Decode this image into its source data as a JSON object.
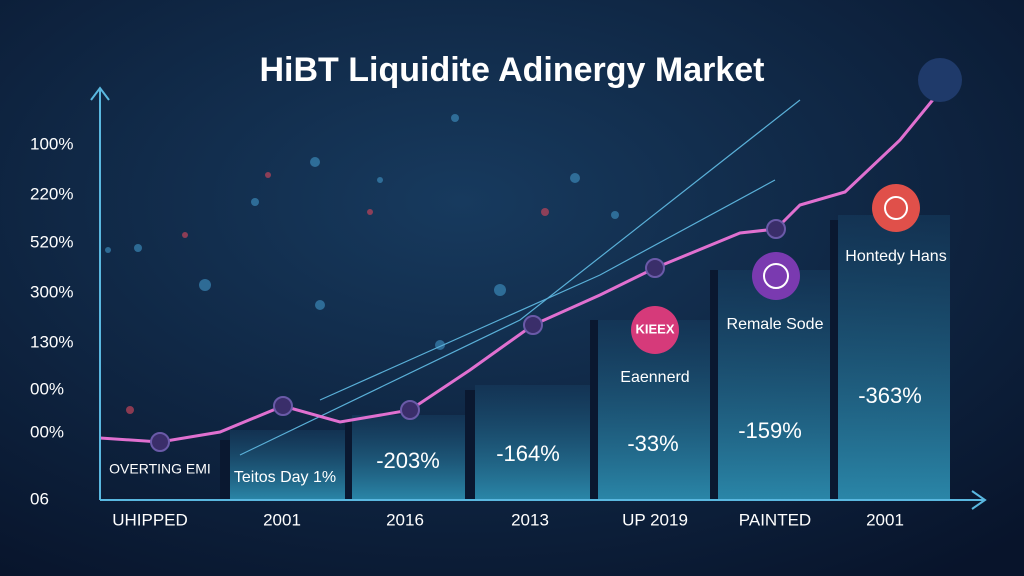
{
  "title": "HiBT Liquidite Adinergy Market",
  "y_labels": [
    "100%",
    "220%",
    "520%",
    "300%",
    "130%",
    "00%",
    "00%",
    "06"
  ],
  "x_labels": [
    "UHIPPED",
    "2001",
    "2016",
    "2013",
    "UP 2019",
    "PAINTED",
    "2001"
  ],
  "bar_labels": [
    "OVERTING EMI",
    "Teitos Day 1%",
    "-203%",
    "-164%",
    "-33%",
    "-159%",
    "-363%"
  ],
  "callouts": [
    {
      "icon": "KIEEX",
      "label": "Eaennerd"
    },
    {
      "label": "Remale Sode"
    },
    {
      "label": "Hontedy Hans"
    }
  ]
}
